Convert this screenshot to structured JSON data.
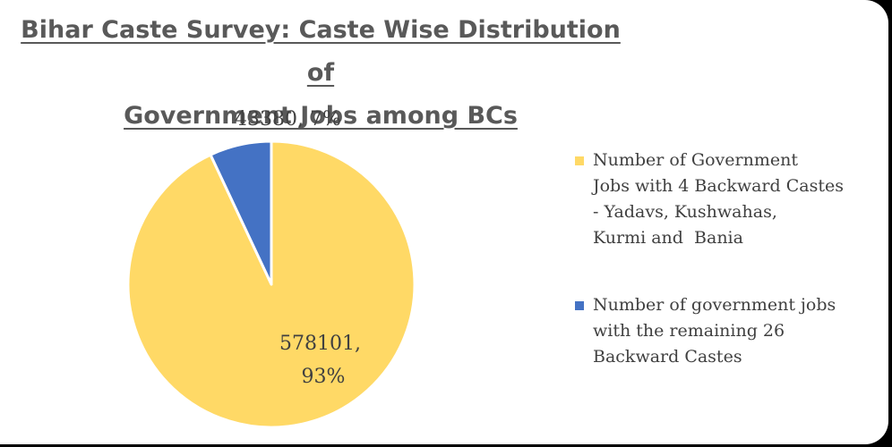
{
  "chart_data": {
    "type": "pie",
    "title_line1": "Bihar Caste Survey: Caste Wise Distribution of",
    "title_line2": "Government Jobs among BCs",
    "slices": [
      {
        "name": "Number of Government Jobs with 4 Backward Castes - Yadavs, Kushwahas, Kurmi and  Bania",
        "value": 578101,
        "percent": 93,
        "label_line1": "578101,",
        "label_line2": "93%",
        "color": "#FFD966"
      },
      {
        "name": "Number of government jobs with the remaining 26 Backward Castes",
        "value": 43380,
        "percent": 7,
        "label_line1": "43380, 7%",
        "label_line2": "",
        "color": "#4472C4"
      }
    ],
    "legend_position": "right",
    "legend_lines": [
      [
        "Number of Government",
        "Jobs with 4 Backward Castes",
        "- Yadavs, Kushwahas,",
        "Kurmi and  Bania"
      ],
      [
        "Number of government jobs",
        "with the remaining 26",
        "Backward Castes"
      ]
    ]
  }
}
